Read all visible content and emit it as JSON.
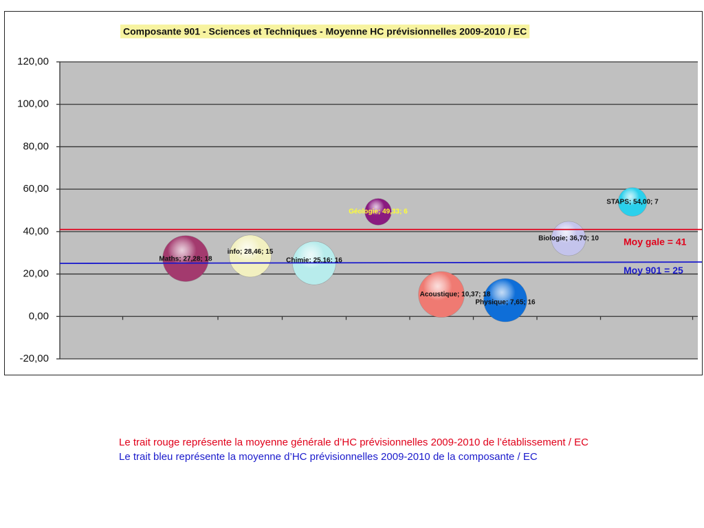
{
  "chart_data": {
    "type": "bubble",
    "title": "Composante 901 - Sciences et Techniques -  Moyenne HC prévisionnelles 2009-2010 / EC",
    "ylim": [
      -20,
      120
    ],
    "yticks": [
      "120,00",
      "100,00",
      "80,00",
      "60,00",
      "40,00",
      "20,00",
      "0,00",
      "-20,00"
    ],
    "ytick_values": [
      120,
      100,
      80,
      60,
      40,
      20,
      0,
      -20
    ],
    "grid": true,
    "plot_background": "#c0c0c0",
    "points": [
      {
        "label": "Maths; 27,28; 18",
        "value": 27.28,
        "size": 18,
        "color": "#a33a6e"
      },
      {
        "label": "info; 28,46; 15",
        "value": 28.46,
        "size": 15,
        "color": "#f2f0c0"
      },
      {
        "label": "Chimie; 25,16; 16",
        "value": 25.16,
        "size": 16,
        "color": "#b8ecec"
      },
      {
        "label": "Géologie; 49,33; 6",
        "value": 49.33,
        "size": 6,
        "color": "#8a1a80"
      },
      {
        "label": "Acoustique; 10,37; 18",
        "value": 10.37,
        "size": 18,
        "color": "#ef7a72"
      },
      {
        "label": "Physique; 7,65; 16",
        "value": 7.65,
        "size": 16,
        "color": "#0e6ed8"
      },
      {
        "label": "Biologie; 36,70; 10",
        "value": 36.7,
        "size": 10,
        "color": "#c4c4ec"
      },
      {
        "label": "STAPS; 54,00; 7",
        "value": 54.0,
        "size": 7,
        "color": "#2ad0ec"
      }
    ],
    "reference_lines": [
      {
        "label": "Moy gale = 41",
        "value": 41,
        "color": "#e0001a"
      },
      {
        "label": "Moy 901 = 25",
        "value": 25,
        "color": "#1a1acc"
      }
    ]
  },
  "notes": {
    "red": "Le trait rouge représente la moyenne générale d’HC prévisionnelles 2009-2010 de l’établissement / EC",
    "blue": "Le trait bleu représente la moyenne d’HC prévisionnelles 2009-2010 de la composante / EC"
  }
}
